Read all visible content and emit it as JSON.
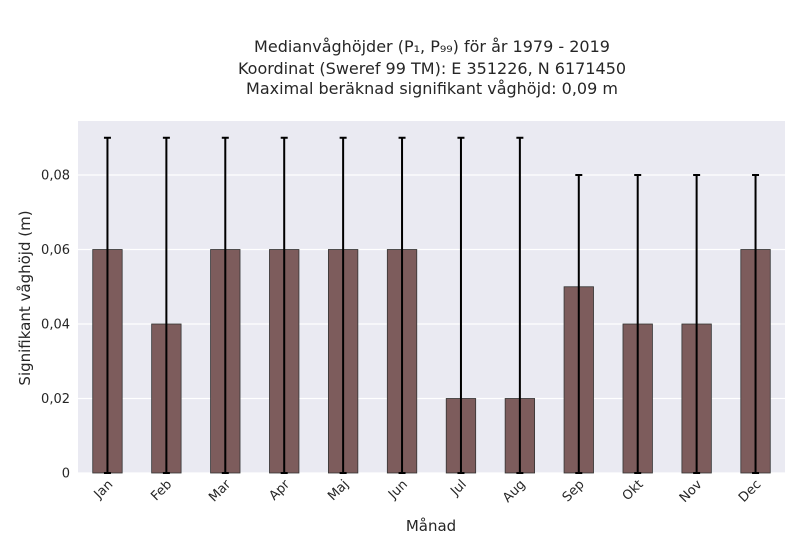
{
  "chart_data": {
    "type": "bar",
    "title_lines": [
      "Medianvåghöjder (P₁, P₉₉) för år 1979 - 2019",
      "Koordinat (Sweref 99 TM): E 351226, N 6171450",
      "Maximal beräknad signifikant våghöjd: 0,09 m"
    ],
    "xlabel": "Månad",
    "ylabel": "Signifikant våghöjd (m)",
    "categories": [
      "Jan",
      "Feb",
      "Mar",
      "Apr",
      "Maj",
      "Jun",
      "Jul",
      "Aug",
      "Sep",
      "Okt",
      "Nov",
      "Dec"
    ],
    "series": [
      {
        "values": [
          0.06,
          0.04,
          0.06,
          0.06,
          0.06,
          0.06,
          0.02,
          0.02,
          0.05,
          0.04,
          0.04,
          0.06
        ],
        "err_low": [
          0,
          0,
          0,
          0,
          0,
          0,
          0,
          0,
          0,
          0,
          0,
          0
        ],
        "err_high": [
          0.09,
          0.09,
          0.09,
          0.09,
          0.09,
          0.09,
          0.09,
          0.09,
          0.08,
          0.08,
          0.08,
          0.08
        ]
      }
    ],
    "ylim": [
      0,
      0.0945
    ],
    "yticks": [
      0,
      0.02,
      0.04,
      0.06,
      0.08
    ],
    "ytick_labels": [
      "0",
      "0,02",
      "0,04",
      "0,06",
      "0,08"
    ],
    "grid": true,
    "colors": {
      "bar": "#7d5c5c",
      "plot_bg": "#eaeaf2",
      "error_bar": "#000000"
    }
  }
}
